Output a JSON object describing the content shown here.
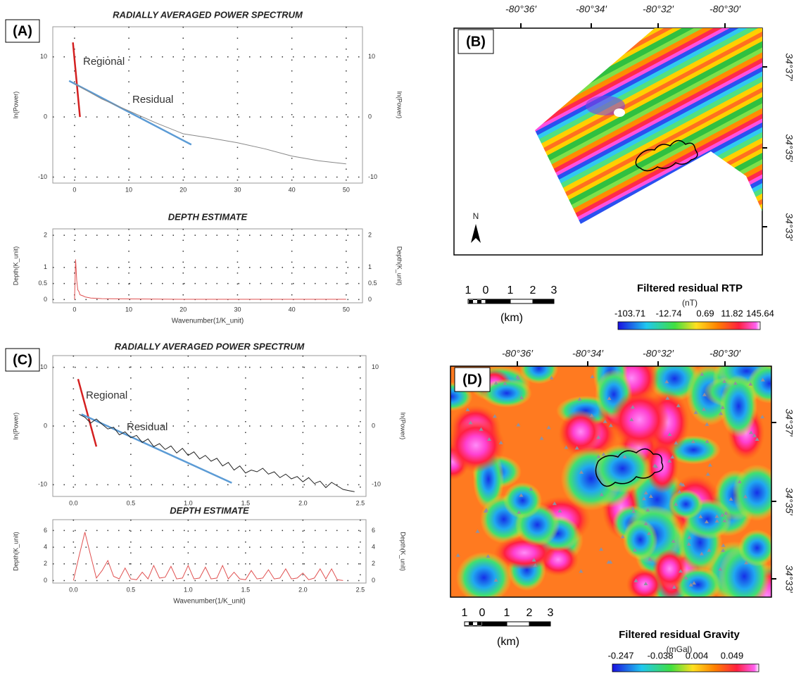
{
  "chart_data": [
    {
      "type": "line",
      "label": "(A)",
      "title": "RADIALLY AVERAGED POWER SPECTRUM",
      "y_label": "ln(Power)",
      "xlim": [
        -4,
        53
      ],
      "ylim": [
        -11,
        15
      ],
      "xticks": [
        0,
        10,
        20,
        30,
        40,
        50
      ],
      "yticks": [
        -10,
        0,
        10
      ],
      "grid": true,
      "series": [
        {
          "name": "Regional",
          "color": "#d42020",
          "x": [
            -0.3,
            1
          ],
          "values": [
            12.4,
            0
          ]
        },
        {
          "name": "Residual",
          "color": "#5b9bd5",
          "x": [
            -1,
            21.5
          ],
          "values": [
            6,
            -4.6
          ]
        },
        {
          "color": "#888888",
          "x": [
            0,
            5,
            10,
            15,
            20,
            25,
            30,
            35,
            40,
            45,
            50
          ],
          "values": [
            5.5,
            3,
            1,
            -1,
            -2.8,
            -3.5,
            -4.3,
            -5.3,
            -6.5,
            -7.3,
            -7.8
          ]
        }
      ]
    },
    {
      "type": "line",
      "title": "DEPTH ESTIMATE",
      "y_label": "Depth(K_unit)",
      "x_label": "Wavenumber(1/K_unit)",
      "xlim": [
        -4,
        53
      ],
      "ylim": [
        -0.1,
        2.2
      ],
      "xticks": [
        0,
        10,
        20,
        30,
        40,
        50
      ],
      "yticks": [
        0,
        0.5,
        1,
        2
      ],
      "grid": true,
      "series": [
        {
          "color": "#e05050",
          "x": [
            0,
            0.2,
            0.4,
            0.6,
            0.8,
            1,
            1.5,
            2,
            3,
            5,
            10,
            20,
            30,
            50
          ],
          "values": [
            0,
            1.25,
            0.6,
            0.3,
            0.25,
            0.15,
            0.12,
            0.08,
            0.05,
            0.03,
            0.02,
            0.01,
            0.01,
            0.01
          ]
        }
      ]
    },
    {
      "type": "line",
      "label": "(C)",
      "title": "RADIALLY AVERAGED POWER SPECTRUM",
      "y_label": "ln(Power)",
      "xlim": [
        -0.18,
        2.55
      ],
      "ylim": [
        -12,
        12
      ],
      "xticks": [
        {
          "value": 0,
          "label": "0.0"
        },
        0.5,
        {
          "value": 1,
          "label": "1.0"
        },
        1.5,
        {
          "value": 2,
          "label": "2.0"
        },
        2.5
      ],
      "yticks": [
        -10,
        0,
        10
      ],
      "grid": true,
      "series": [
        {
          "name": "Regional",
          "color": "#d42020",
          "x": [
            0.04,
            0.2
          ],
          "values": [
            8,
            -3.5
          ]
        },
        {
          "name": "Residual",
          "color": "#5b9bd5",
          "x": [
            0.07,
            1.38
          ],
          "values": [
            2,
            -9.7
          ]
        },
        {
          "color": "#222222",
          "x": [
            0.05,
            0.1,
            0.15,
            0.2,
            0.25,
            0.3,
            0.35,
            0.4,
            0.45,
            0.5,
            0.55,
            0.6,
            0.65,
            0.7,
            0.75,
            0.8,
            0.85,
            0.9,
            0.95,
            1.0,
            1.05,
            1.1,
            1.15,
            1.2,
            1.25,
            1.3,
            1.35,
            1.4,
            1.45,
            1.5,
            1.55,
            1.6,
            1.65,
            1.7,
            1.75,
            1.8,
            1.85,
            1.9,
            1.95,
            2.0,
            2.05,
            2.1,
            2.15,
            2.2,
            2.25,
            2.3,
            2.35,
            2.4,
            2.45
          ],
          "values": [
            2,
            1.5,
            0.5,
            1.2,
            0.3,
            -0.5,
            -0.2,
            -1.5,
            -1,
            -2,
            -1.6,
            -2.8,
            -2.2,
            -3.5,
            -3,
            -4,
            -3.4,
            -4.6,
            -3.8,
            -5,
            -4.4,
            -5.6,
            -5,
            -6,
            -5.5,
            -6.8,
            -6.2,
            -7.5,
            -6.8,
            -8,
            -7.5,
            -7.8,
            -7.2,
            -8.2,
            -7.8,
            -8.8,
            -8.2,
            -9,
            -8.6,
            -9.5,
            -8.8,
            -9.8,
            -9.4,
            -10.5,
            -9.6,
            -10.2,
            -10.8,
            -11,
            -11.2
          ]
        }
      ]
    },
    {
      "type": "line",
      "title": "DEPTH ESTIMATE",
      "y_label": "Depth(K_unit)",
      "x_label": "Wavenumber(1/K_unit)",
      "xlim": [
        -0.18,
        2.55
      ],
      "ylim": [
        -0.3,
        7.3
      ],
      "xticks": [
        {
          "value": 0,
          "label": "0.0"
        },
        0.5,
        {
          "value": 1,
          "label": "1.0"
        },
        1.5,
        {
          "value": 2,
          "label": "2.0"
        },
        2.5
      ],
      "yticks": [
        0,
        2,
        4,
        6
      ],
      "grid": true,
      "series": [
        {
          "color": "#e05050",
          "x": [
            0,
            0.05,
            0.1,
            0.15,
            0.2,
            0.25,
            0.3,
            0.35,
            0.4,
            0.45,
            0.5,
            0.55,
            0.6,
            0.65,
            0.7,
            0.75,
            0.8,
            0.85,
            0.9,
            0.95,
            1.0,
            1.05,
            1.1,
            1.15,
            1.2,
            1.25,
            1.3,
            1.35,
            1.4,
            1.45,
            1.5,
            1.55,
            1.6,
            1.65,
            1.7,
            1.75,
            1.8,
            1.85,
            1.9,
            1.95,
            2.0,
            2.05,
            2.1,
            2.15,
            2.2,
            2.25,
            2.3,
            2.35
          ],
          "values": [
            0,
            3,
            5.8,
            3,
            0.3,
            1.2,
            2.4,
            0.5,
            0.2,
            1.5,
            0.2,
            0.1,
            1,
            0.2,
            1.8,
            0.3,
            0.4,
            1.7,
            0.2,
            0.3,
            1.8,
            0.2,
            0.3,
            1.6,
            0.2,
            0.3,
            1.8,
            0.2,
            1,
            0.2,
            0.1,
            1.2,
            0.2,
            0.3,
            1.3,
            0.2,
            0.3,
            1.4,
            0.2,
            0.3,
            0.9,
            0.1,
            0.3,
            1.4,
            0.2,
            1.4,
            0.1,
            0
          ]
        }
      ]
    }
  ],
  "maps": [
    {
      "label": "(B)",
      "lon_labels": [
        "-80°36′",
        "-80°34′",
        "-80°32′",
        "-80°30′"
      ],
      "lat_labels": [
        "34°37′",
        "34°35′",
        "34°33′"
      ],
      "north": "N",
      "scale_labels": [
        "1",
        "0",
        "1",
        "2",
        "3"
      ],
      "scale_unit": "(km)",
      "legend_title": "Filtered residual RTP",
      "legend_unit": "(nT)",
      "colorbar_labels": [
        "-103.71",
        "-12.74",
        "0.69",
        "11.82",
        "145.64"
      ]
    },
    {
      "label": "(D)",
      "lon_labels": [
        "-80°36′",
        "-80°34′",
        "-80°32′",
        "-80°30′"
      ],
      "lat_labels": [
        "34°37′",
        "34°35′",
        "34°33′"
      ],
      "scale_labels": [
        "1",
        "0",
        "1",
        "2",
        "3"
      ],
      "scale_unit": "(km)",
      "legend_title": "Filtered residual Gravity",
      "legend_unit": "(mGal)",
      "colorbar_labels": [
        "-0.247",
        "-0.038",
        "0.004",
        "0.049"
      ]
    }
  ]
}
